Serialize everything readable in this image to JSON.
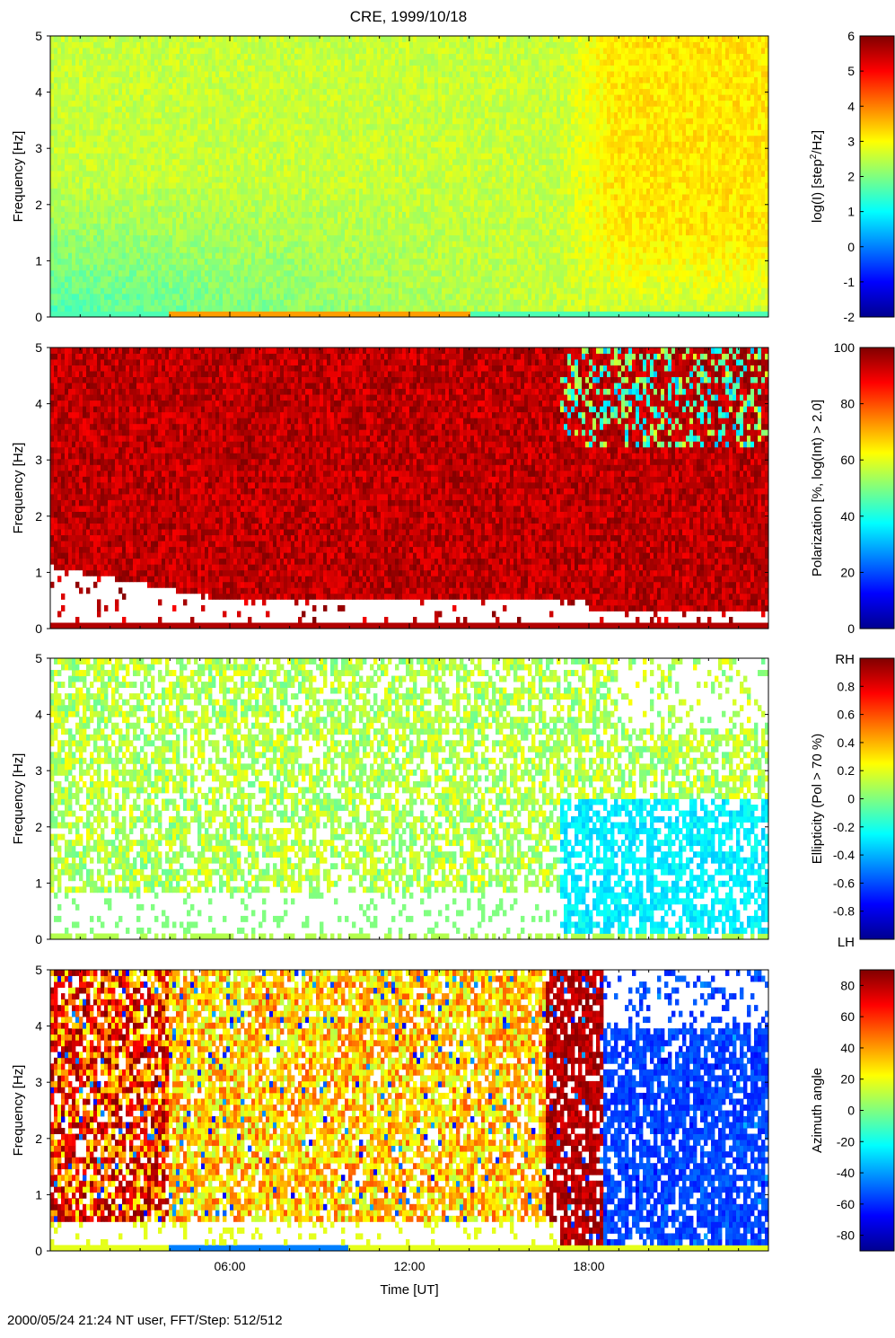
{
  "figure": {
    "title": "CRE, 1999/10/18",
    "footer": "2000/05/24 21:24 NT user, FFT/Step: 512/512"
  },
  "chart_data": [
    {
      "type": "heatmap",
      "panel": "intensity",
      "title": "CRE, 1999/10/18",
      "ylabel": "Frequency [Hz]",
      "ylim": [
        0,
        5
      ],
      "yticks": [
        0,
        1,
        2,
        3,
        4,
        5
      ],
      "colorbar": {
        "label_text": "log(I) [step",
        "label_sup": "2",
        "label_tail": "/Hz]",
        "range": [
          -2,
          6
        ],
        "ticks": [
          "6",
          "5",
          "4",
          "3",
          "2",
          "1",
          "0",
          "-1",
          "-2"
        ]
      }
    },
    {
      "type": "heatmap",
      "panel": "polarization",
      "ylabel": "Frequency [Hz]",
      "ylim": [
        0,
        5
      ],
      "yticks": [
        0,
        1,
        2,
        3,
        4,
        5
      ],
      "colorbar": {
        "label": "Polarization [%, log(Int) >  2.0]",
        "range": [
          0,
          100
        ],
        "ticks": [
          "100",
          "80",
          "60",
          "40",
          "20",
          "0"
        ]
      }
    },
    {
      "type": "heatmap",
      "panel": "ellipticity",
      "ylabel": "Frequency [Hz]",
      "ylim": [
        0,
        5
      ],
      "yticks": [
        0,
        1,
        2,
        3,
        4,
        5
      ],
      "colorbar": {
        "label": "Ellipticity (Pol >  70 %)",
        "range": [
          -1,
          1
        ],
        "ticks": [
          "0.8",
          "0.6",
          "0.4",
          "0.2",
          "0",
          "-0.2",
          "-0.4",
          "-0.6",
          "-0.8"
        ],
        "end_labels": [
          "RH",
          "LH"
        ]
      }
    },
    {
      "type": "heatmap",
      "panel": "azimuth",
      "ylabel": "Frequency [Hz]",
      "ylim": [
        0,
        5
      ],
      "yticks": [
        0,
        1,
        2,
        3,
        4,
        5
      ],
      "xlabel": "Time [UT]",
      "xlim": [
        0,
        24
      ],
      "xticks": [
        "06:00",
        "12:00",
        "18:00"
      ],
      "colorbar": {
        "label": "Azimuth angle",
        "range": [
          -90,
          90
        ],
        "ticks": [
          "80",
          "60",
          "40",
          "20",
          "0",
          "-20",
          "-40",
          "-60",
          "-80"
        ]
      }
    }
  ]
}
